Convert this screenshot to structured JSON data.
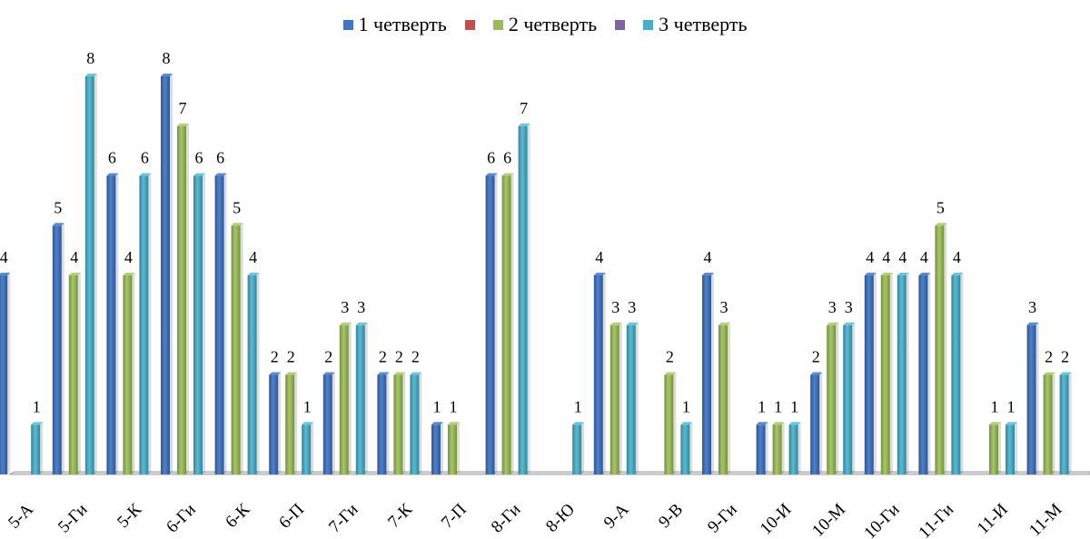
{
  "chart_data": {
    "type": "bar",
    "title": "",
    "xlabel": "",
    "ylabel": "",
    "ylim": [
      0,
      8
    ],
    "grid": false,
    "legend_position": "top-center",
    "categories": [
      "5-А",
      "5-Ги",
      "5-К",
      "6-Ги",
      "6-К",
      "6-П",
      "7-Ги",
      "7-К",
      "7-П",
      "8-Ги",
      "8-Ю",
      "9-А",
      "9-В",
      "9-Ги",
      "10-И",
      "10-М",
      "10-Ги",
      "11-Ги",
      "11-И",
      "11-М"
    ],
    "series": [
      {
        "name": "1 четверть",
        "color": "#4472C4",
        "values": [
          4,
          5,
          6,
          8,
          6,
          2,
          2,
          2,
          1,
          6,
          null,
          4,
          null,
          4,
          1,
          2,
          4,
          4,
          null,
          3
        ]
      },
      {
        "name": "",
        "color": "#C0504D",
        "values": [
          null,
          null,
          null,
          null,
          null,
          null,
          null,
          null,
          null,
          null,
          null,
          null,
          null,
          null,
          null,
          null,
          null,
          null,
          null,
          null
        ]
      },
      {
        "name": "2 четверть",
        "color": "#9BBB59",
        "values": [
          null,
          4,
          4,
          7,
          5,
          2,
          3,
          2,
          1,
          6,
          null,
          3,
          2,
          3,
          1,
          3,
          4,
          5,
          1,
          2
        ]
      },
      {
        "name": "",
        "color": "#8064A2",
        "values": [
          null,
          null,
          null,
          null,
          null,
          null,
          null,
          null,
          null,
          null,
          null,
          null,
          null,
          null,
          null,
          null,
          null,
          null,
          null,
          null
        ]
      },
      {
        "name": "3 четверть",
        "color": "#4BACC6",
        "values": [
          1,
          8,
          6,
          6,
          4,
          1,
          3,
          2,
          null,
          7,
          1,
          3,
          1,
          null,
          1,
          3,
          4,
          4,
          1,
          2
        ]
      }
    ]
  }
}
